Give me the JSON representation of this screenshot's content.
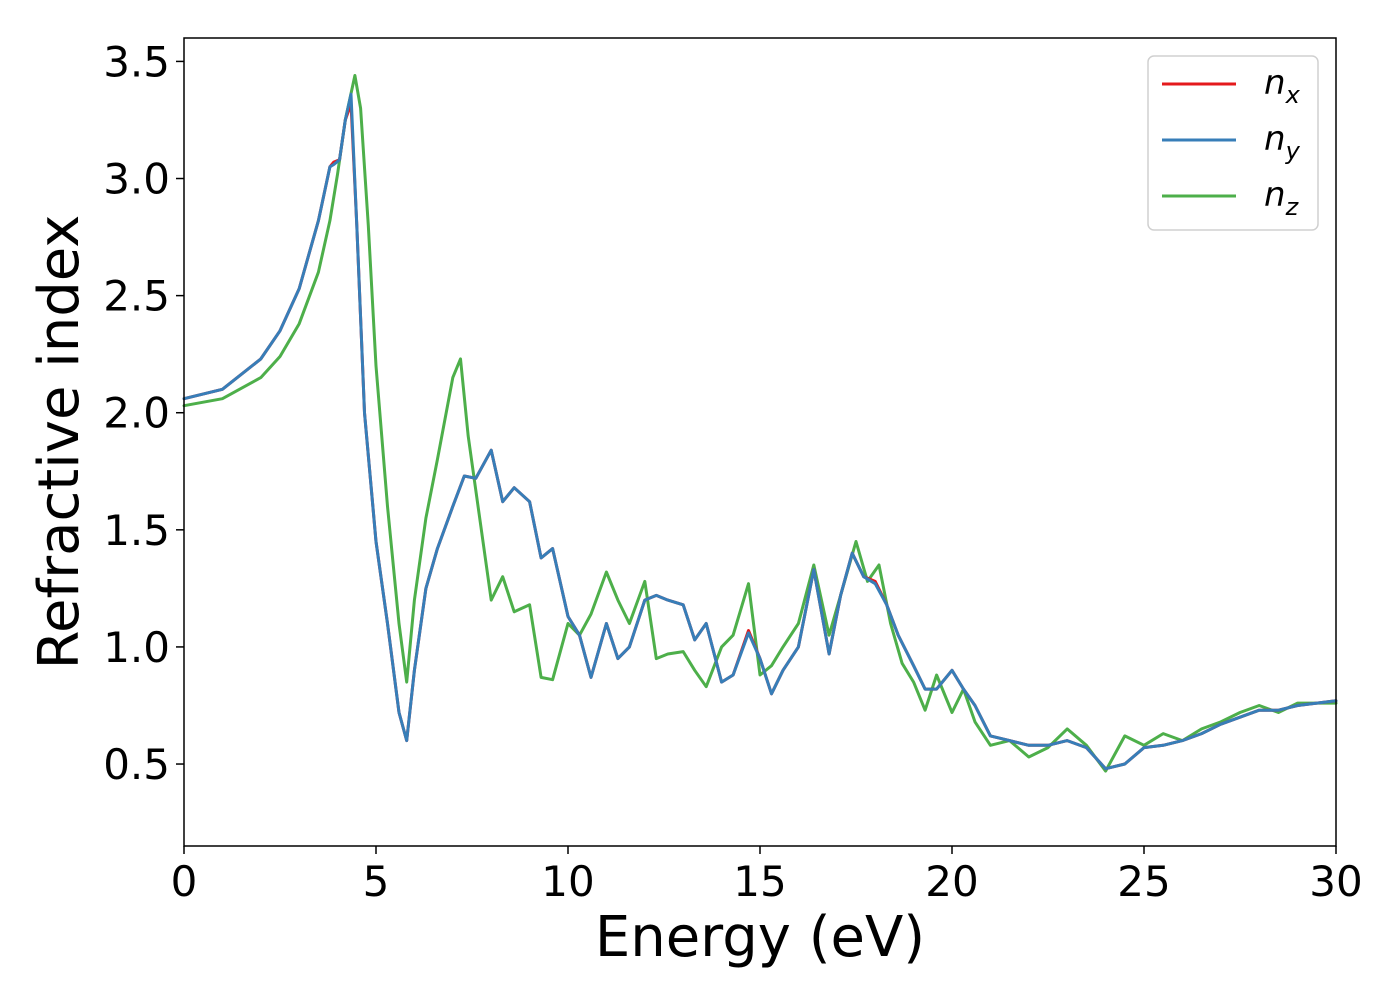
{
  "chart_data": {
    "type": "line",
    "xlabel": "Energy (eV)",
    "ylabel": "Refractive index",
    "xlim": [
      0,
      30
    ],
    "ylim": [
      0.15,
      3.6
    ],
    "xticks": [
      "0",
      "5",
      "10",
      "15",
      "20",
      "25",
      "30"
    ],
    "yticks": [
      "0.5",
      "1.0",
      "1.5",
      "2.0",
      "2.5",
      "3.0",
      "3.5"
    ],
    "grid": false,
    "legend_position": "top-right",
    "series": [
      {
        "name": "n",
        "sub": "x",
        "color": "#e41a1c",
        "x": [
          0,
          1,
          2,
          2.5,
          3,
          3.5,
          3.8,
          3.9,
          4.05,
          4.2,
          4.35,
          4.5,
          4.7,
          5.0,
          5.3,
          5.6,
          5.8,
          6.0,
          6.3,
          6.6,
          7.0,
          7.3,
          7.6,
          8.0,
          8.3,
          8.6,
          9.0,
          9.3,
          9.6,
          10.0,
          10.3,
          10.6,
          11.0,
          11.3,
          11.6,
          12.0,
          12.3,
          12.6,
          13.0,
          13.3,
          13.6,
          14.0,
          14.3,
          14.7,
          15.0,
          15.3,
          15.6,
          16.0,
          16.4,
          16.8,
          17.1,
          17.4,
          17.7,
          18.0,
          18.3,
          18.6,
          19.0,
          19.3,
          19.6,
          20.0,
          20.3,
          20.6,
          21.0,
          21.5,
          22.0,
          22.5,
          23.0,
          23.5,
          24.0,
          24.5,
          25.0,
          25.5,
          26.0,
          26.5,
          27.0,
          27.5,
          28.0,
          28.5,
          29.0,
          29.5,
          30.0
        ],
        "y": [
          2.06,
          2.1,
          2.23,
          2.35,
          2.53,
          2.82,
          3.05,
          3.07,
          3.08,
          3.25,
          3.32,
          2.8,
          2.0,
          1.45,
          1.1,
          0.72,
          0.6,
          0.9,
          1.25,
          1.42,
          1.6,
          1.73,
          1.72,
          1.84,
          1.62,
          1.68,
          1.62,
          1.38,
          1.42,
          1.13,
          1.05,
          0.87,
          1.1,
          0.95,
          1.0,
          1.2,
          1.22,
          1.2,
          1.18,
          1.03,
          1.1,
          0.85,
          0.88,
          1.07,
          0.95,
          0.8,
          0.9,
          1.0,
          1.33,
          0.97,
          1.22,
          1.4,
          1.3,
          1.28,
          1.18,
          1.05,
          0.92,
          0.82,
          0.82,
          0.9,
          0.82,
          0.75,
          0.62,
          0.6,
          0.58,
          0.58,
          0.6,
          0.57,
          0.48,
          0.5,
          0.57,
          0.58,
          0.6,
          0.63,
          0.67,
          0.7,
          0.73,
          0.73,
          0.75,
          0.76,
          0.77
        ]
      },
      {
        "name": "n",
        "sub": "y",
        "color": "#377eb8",
        "x": [
          0,
          1,
          2,
          2.5,
          3,
          3.5,
          3.8,
          3.9,
          4.05,
          4.2,
          4.35,
          4.5,
          4.7,
          5.0,
          5.3,
          5.6,
          5.8,
          6.0,
          6.3,
          6.6,
          7.0,
          7.3,
          7.6,
          8.0,
          8.3,
          8.6,
          9.0,
          9.3,
          9.6,
          10.0,
          10.3,
          10.6,
          11.0,
          11.3,
          11.6,
          12.0,
          12.3,
          12.6,
          13.0,
          13.3,
          13.6,
          14.0,
          14.3,
          14.7,
          15.0,
          15.3,
          15.6,
          16.0,
          16.4,
          16.8,
          17.1,
          17.4,
          17.7,
          18.0,
          18.3,
          18.6,
          19.0,
          19.3,
          19.6,
          20.0,
          20.3,
          20.6,
          21.0,
          21.5,
          22.0,
          22.5,
          23.0,
          23.5,
          24.0,
          24.5,
          25.0,
          25.5,
          26.0,
          26.5,
          27.0,
          27.5,
          28.0,
          28.5,
          29.0,
          29.5,
          30.0
        ],
        "y": [
          2.06,
          2.1,
          2.23,
          2.35,
          2.53,
          2.82,
          3.05,
          3.06,
          3.08,
          3.25,
          3.36,
          2.8,
          2.0,
          1.45,
          1.1,
          0.72,
          0.6,
          0.9,
          1.25,
          1.42,
          1.6,
          1.73,
          1.72,
          1.84,
          1.62,
          1.68,
          1.62,
          1.38,
          1.42,
          1.13,
          1.05,
          0.87,
          1.1,
          0.95,
          1.0,
          1.2,
          1.22,
          1.2,
          1.18,
          1.03,
          1.1,
          0.85,
          0.88,
          1.06,
          0.95,
          0.8,
          0.9,
          1.0,
          1.33,
          0.97,
          1.22,
          1.4,
          1.3,
          1.27,
          1.18,
          1.05,
          0.92,
          0.82,
          0.82,
          0.9,
          0.82,
          0.75,
          0.62,
          0.6,
          0.58,
          0.58,
          0.6,
          0.57,
          0.48,
          0.5,
          0.57,
          0.58,
          0.6,
          0.63,
          0.67,
          0.7,
          0.73,
          0.73,
          0.75,
          0.76,
          0.77
        ]
      },
      {
        "name": "n",
        "sub": "z",
        "color": "#4daf4a",
        "x": [
          0,
          1,
          2,
          2.5,
          3,
          3.5,
          3.8,
          4.0,
          4.2,
          4.45,
          4.6,
          4.8,
          5.0,
          5.3,
          5.6,
          5.8,
          6.0,
          6.3,
          6.6,
          7.0,
          7.2,
          7.4,
          7.7,
          8.0,
          8.3,
          8.6,
          9.0,
          9.3,
          9.6,
          10.0,
          10.3,
          10.6,
          11.0,
          11.3,
          11.6,
          12.0,
          12.3,
          12.6,
          13.0,
          13.3,
          13.6,
          14.0,
          14.3,
          14.7,
          15.0,
          15.3,
          15.6,
          16.0,
          16.4,
          16.8,
          17.1,
          17.5,
          17.8,
          18.1,
          18.4,
          18.7,
          19.0,
          19.3,
          19.6,
          20.0,
          20.3,
          20.6,
          21.0,
          21.5,
          22.0,
          22.5,
          23.0,
          23.5,
          24.0,
          24.5,
          25.0,
          25.5,
          26.0,
          26.5,
          27.0,
          27.5,
          28.0,
          28.5,
          29.0,
          29.5,
          30.0
        ],
        "y": [
          2.03,
          2.06,
          2.15,
          2.24,
          2.38,
          2.6,
          2.82,
          3.02,
          3.25,
          3.44,
          3.3,
          2.8,
          2.2,
          1.6,
          1.1,
          0.85,
          1.2,
          1.55,
          1.8,
          2.15,
          2.23,
          1.9,
          1.55,
          1.2,
          1.3,
          1.15,
          1.18,
          0.87,
          0.86,
          1.1,
          1.05,
          1.14,
          1.32,
          1.2,
          1.1,
          1.28,
          0.95,
          0.97,
          0.98,
          0.9,
          0.83,
          1.0,
          1.05,
          1.27,
          0.88,
          0.92,
          1.0,
          1.1,
          1.35,
          1.05,
          1.22,
          1.45,
          1.28,
          1.35,
          1.1,
          0.93,
          0.85,
          0.73,
          0.88,
          0.72,
          0.82,
          0.68,
          0.58,
          0.6,
          0.53,
          0.57,
          0.65,
          0.58,
          0.47,
          0.62,
          0.58,
          0.63,
          0.6,
          0.65,
          0.68,
          0.72,
          0.75,
          0.72,
          0.76,
          0.76,
          0.76
        ]
      }
    ]
  }
}
